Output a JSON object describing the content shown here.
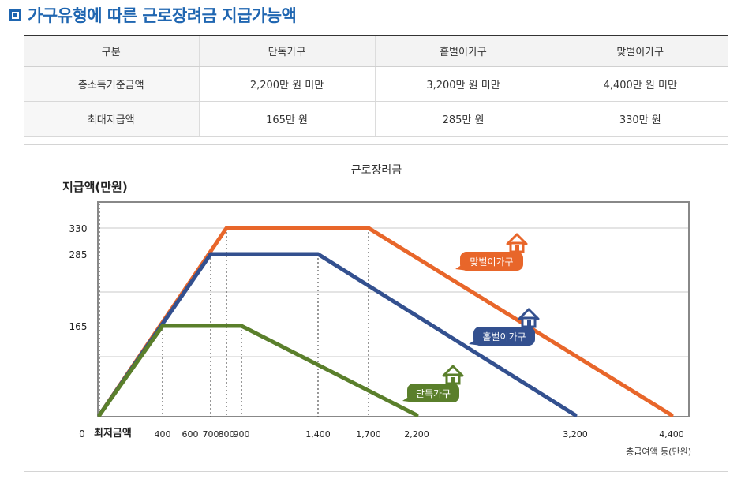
{
  "title": "가구유형에 따른 근로장려금 지급가능액",
  "table": {
    "headers": [
      "구분",
      "단독가구",
      "홑벌이가구",
      "맞벌이가구"
    ],
    "rows": [
      [
        "총소득기준금액",
        "2,200만 원 미만",
        "3,200만 원 미만",
        "4,400만 원 미만"
      ],
      [
        "최대지급액",
        "165만 원",
        "285만 원",
        "330만 원"
      ]
    ]
  },
  "colors": {
    "accent": "#1f66b1",
    "single": "#5a7f2b",
    "oneEarner": "#33508f",
    "dual": "#e8662a"
  },
  "chart_data": {
    "type": "line",
    "title": "근로장려금",
    "ylabel": "지급액(만원)",
    "xlabel": "총급여액 등(만원)",
    "y_ticks": [
      "330",
      "285",
      "165"
    ],
    "x_ticks": [
      "400",
      "600",
      "700",
      "800",
      "900",
      "1,400",
      "1,700",
      "2,200",
      "3,200",
      "4,400"
    ],
    "origin_label": "0",
    "min_wage_label": "최저금액",
    "series": [
      {
        "name": "단독가구",
        "color": "#5a7f2b",
        "x": [
          0,
          400,
          900,
          2200
        ],
        "y": [
          0,
          165,
          165,
          0
        ]
      },
      {
        "name": "홑벌이가구",
        "color": "#33508f",
        "x": [
          0,
          700,
          1400,
          3200
        ],
        "y": [
          0,
          285,
          285,
          0
        ]
      },
      {
        "name": "맞벌이가구",
        "color": "#e8662a",
        "x": [
          0,
          800,
          1700,
          4400
        ],
        "y": [
          0,
          330,
          330,
          0
        ]
      }
    ]
  }
}
